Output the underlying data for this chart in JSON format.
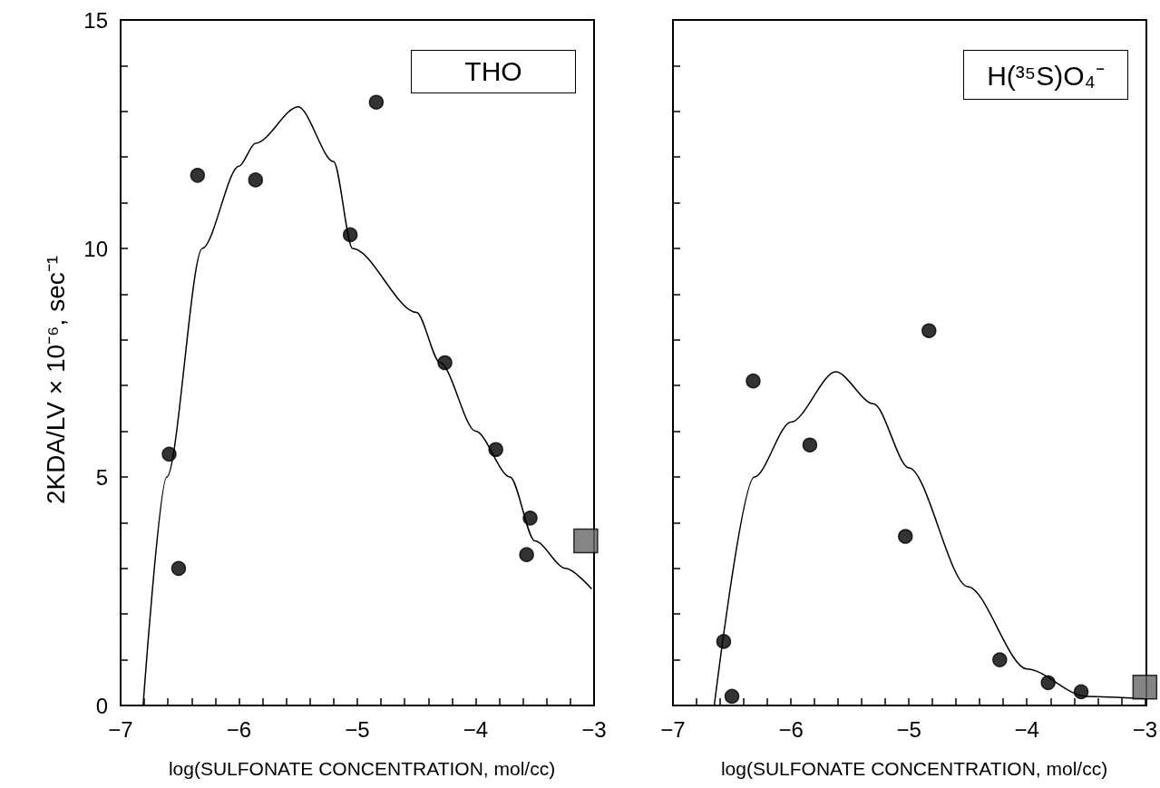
{
  "chart_data": [
    {
      "type": "scatter",
      "title": "THO",
      "xlabel": "log(SULFONATE CONCENTRATION, mol/cc)",
      "ylabel": "2KDA/LV × 10⁻⁶, sec⁻¹",
      "xlim": [
        -7,
        -3
      ],
      "ylim": [
        0,
        15
      ],
      "xticks": [
        -7,
        {
          "value": -6.8,
          "label": null
        },
        {
          "value": -6.6,
          "label": null
        },
        {
          "value": -6.4,
          "label": null
        },
        {
          "value": -6.2,
          "label": null
        },
        -6,
        {
          "value": -5.8,
          "label": null
        },
        {
          "value": -5.6,
          "label": null
        },
        {
          "value": -5.4,
          "label": null
        },
        {
          "value": -5.2,
          "label": null
        },
        -5,
        {
          "value": -4.8,
          "label": null
        },
        {
          "value": -4.6,
          "label": null
        },
        {
          "value": -4.4,
          "label": null
        },
        {
          "value": -4.2,
          "label": null
        },
        -4,
        {
          "value": -3.8,
          "label": null
        },
        {
          "value": -3.6,
          "label": null
        },
        {
          "value": -3.4,
          "label": null
        },
        {
          "value": -3.2,
          "label": null
        },
        -3
      ],
      "yticks": [
        0,
        {
          "value": 1,
          "label": null
        },
        {
          "value": 2,
          "label": null
        },
        {
          "value": 3,
          "label": null
        },
        {
          "value": 4,
          "label": null
        },
        5,
        {
          "value": 6,
          "label": null
        },
        {
          "value": 7,
          "label": null
        },
        {
          "value": 8,
          "label": null
        },
        {
          "value": 9,
          "label": null
        },
        10,
        {
          "value": 11,
          "label": null
        },
        {
          "value": 12,
          "label": null
        },
        {
          "value": 13,
          "label": null
        },
        {
          "value": 14,
          "label": null
        },
        15
      ],
      "grid": false,
      "series": [
        {
          "marker": "circle",
          "color": "#000000",
          "x": [
            -6.59,
            -6.51,
            -6.35,
            -5.86,
            -5.06,
            -4.84,
            -4.26,
            -3.83,
            -3.54,
            -3.57
          ],
          "values": [
            5.5,
            3.0,
            11.6,
            11.5,
            10.3,
            13.2,
            7.5,
            5.6,
            4.1,
            3.3
          ]
        },
        {
          "marker": "square",
          "color": "#666666",
          "x": [
            -3.07
          ],
          "values": [
            3.6
          ]
        },
        {
          "type": "line",
          "marker": "none",
          "color": "#000000",
          "x": [
            -6.81,
            -6.61,
            -6.31,
            -6.0,
            -5.86,
            -5.5,
            -5.2,
            -5.04,
            -4.5,
            -4.3,
            -4.0,
            -3.71,
            -3.5,
            -3.24,
            -3.02
          ],
          "values": [
            0,
            5,
            10,
            11.8,
            12.3,
            13.1,
            11.9,
            10,
            8.6,
            7.5,
            6.0,
            5,
            3.6,
            3,
            2.55
          ]
        }
      ]
    },
    {
      "type": "scatter",
      "title": "H(³⁵S)O₄⁻",
      "xlabel": "log(SULFONATE CONCENTRATION, mol/cc)",
      "xlim": [
        -7,
        -3
      ],
      "ylim": [
        0,
        15
      ],
      "tick_labels": "x",
      "xticks": [
        -7,
        {
          "value": -6.8,
          "label": null
        },
        {
          "value": -6.6,
          "label": null
        },
        {
          "value": -6.4,
          "label": null
        },
        {
          "value": -6.2,
          "label": null
        },
        -6,
        {
          "value": -5.8,
          "label": null
        },
        {
          "value": -5.6,
          "label": null
        },
        {
          "value": -5.4,
          "label": null
        },
        {
          "value": -5.2,
          "label": null
        },
        -5,
        {
          "value": -4.8,
          "label": null
        },
        {
          "value": -4.6,
          "label": null
        },
        {
          "value": -4.4,
          "label": null
        },
        {
          "value": -4.2,
          "label": null
        },
        -4,
        {
          "value": -3.8,
          "label": null
        },
        {
          "value": -3.6,
          "label": null
        },
        {
          "value": -3.4,
          "label": null
        },
        {
          "value": -3.2,
          "label": null
        },
        -3
      ],
      "yticks": [
        {
          "value": 0,
          "label": null
        },
        {
          "value": 1,
          "label": null
        },
        {
          "value": 2,
          "label": null
        },
        {
          "value": 3,
          "label": null
        },
        {
          "value": 4,
          "label": null
        },
        {
          "value": 5,
          "label": null
        },
        {
          "value": 6,
          "label": null
        },
        {
          "value": 7,
          "label": null
        },
        {
          "value": 8,
          "label": null
        },
        {
          "value": 9,
          "label": null
        },
        {
          "value": 10,
          "label": null
        },
        {
          "value": 11,
          "label": null
        },
        {
          "value": 12,
          "label": null
        },
        {
          "value": 13,
          "label": null
        },
        {
          "value": 14,
          "label": null
        },
        {
          "value": 15,
          "label": null
        }
      ],
      "grid": false,
      "series": [
        {
          "marker": "circle",
          "color": "#000000",
          "x": [
            -6.57,
            -6.5,
            -6.32,
            -5.84,
            -5.03,
            -4.83,
            -4.23,
            -3.82,
            -3.54
          ],
          "values": [
            1.4,
            0.2,
            7.1,
            5.7,
            3.7,
            8.2,
            1.0,
            0.5,
            0.3
          ]
        },
        {
          "marker": "square",
          "color": "#666666",
          "x": [
            -3.0
          ],
          "values": [
            0.4
          ]
        },
        {
          "type": "line",
          "marker": "none",
          "color": "#000000",
          "x": [
            -6.65,
            -6.31,
            -6.0,
            -5.62,
            -5.3,
            -5.0,
            -4.5,
            -4.0,
            -3.5,
            -3.0
          ],
          "values": [
            0,
            5,
            6.2,
            7.3,
            6.6,
            5.2,
            2.6,
            0.8,
            0.2,
            0.15
          ]
        }
      ]
    }
  ]
}
